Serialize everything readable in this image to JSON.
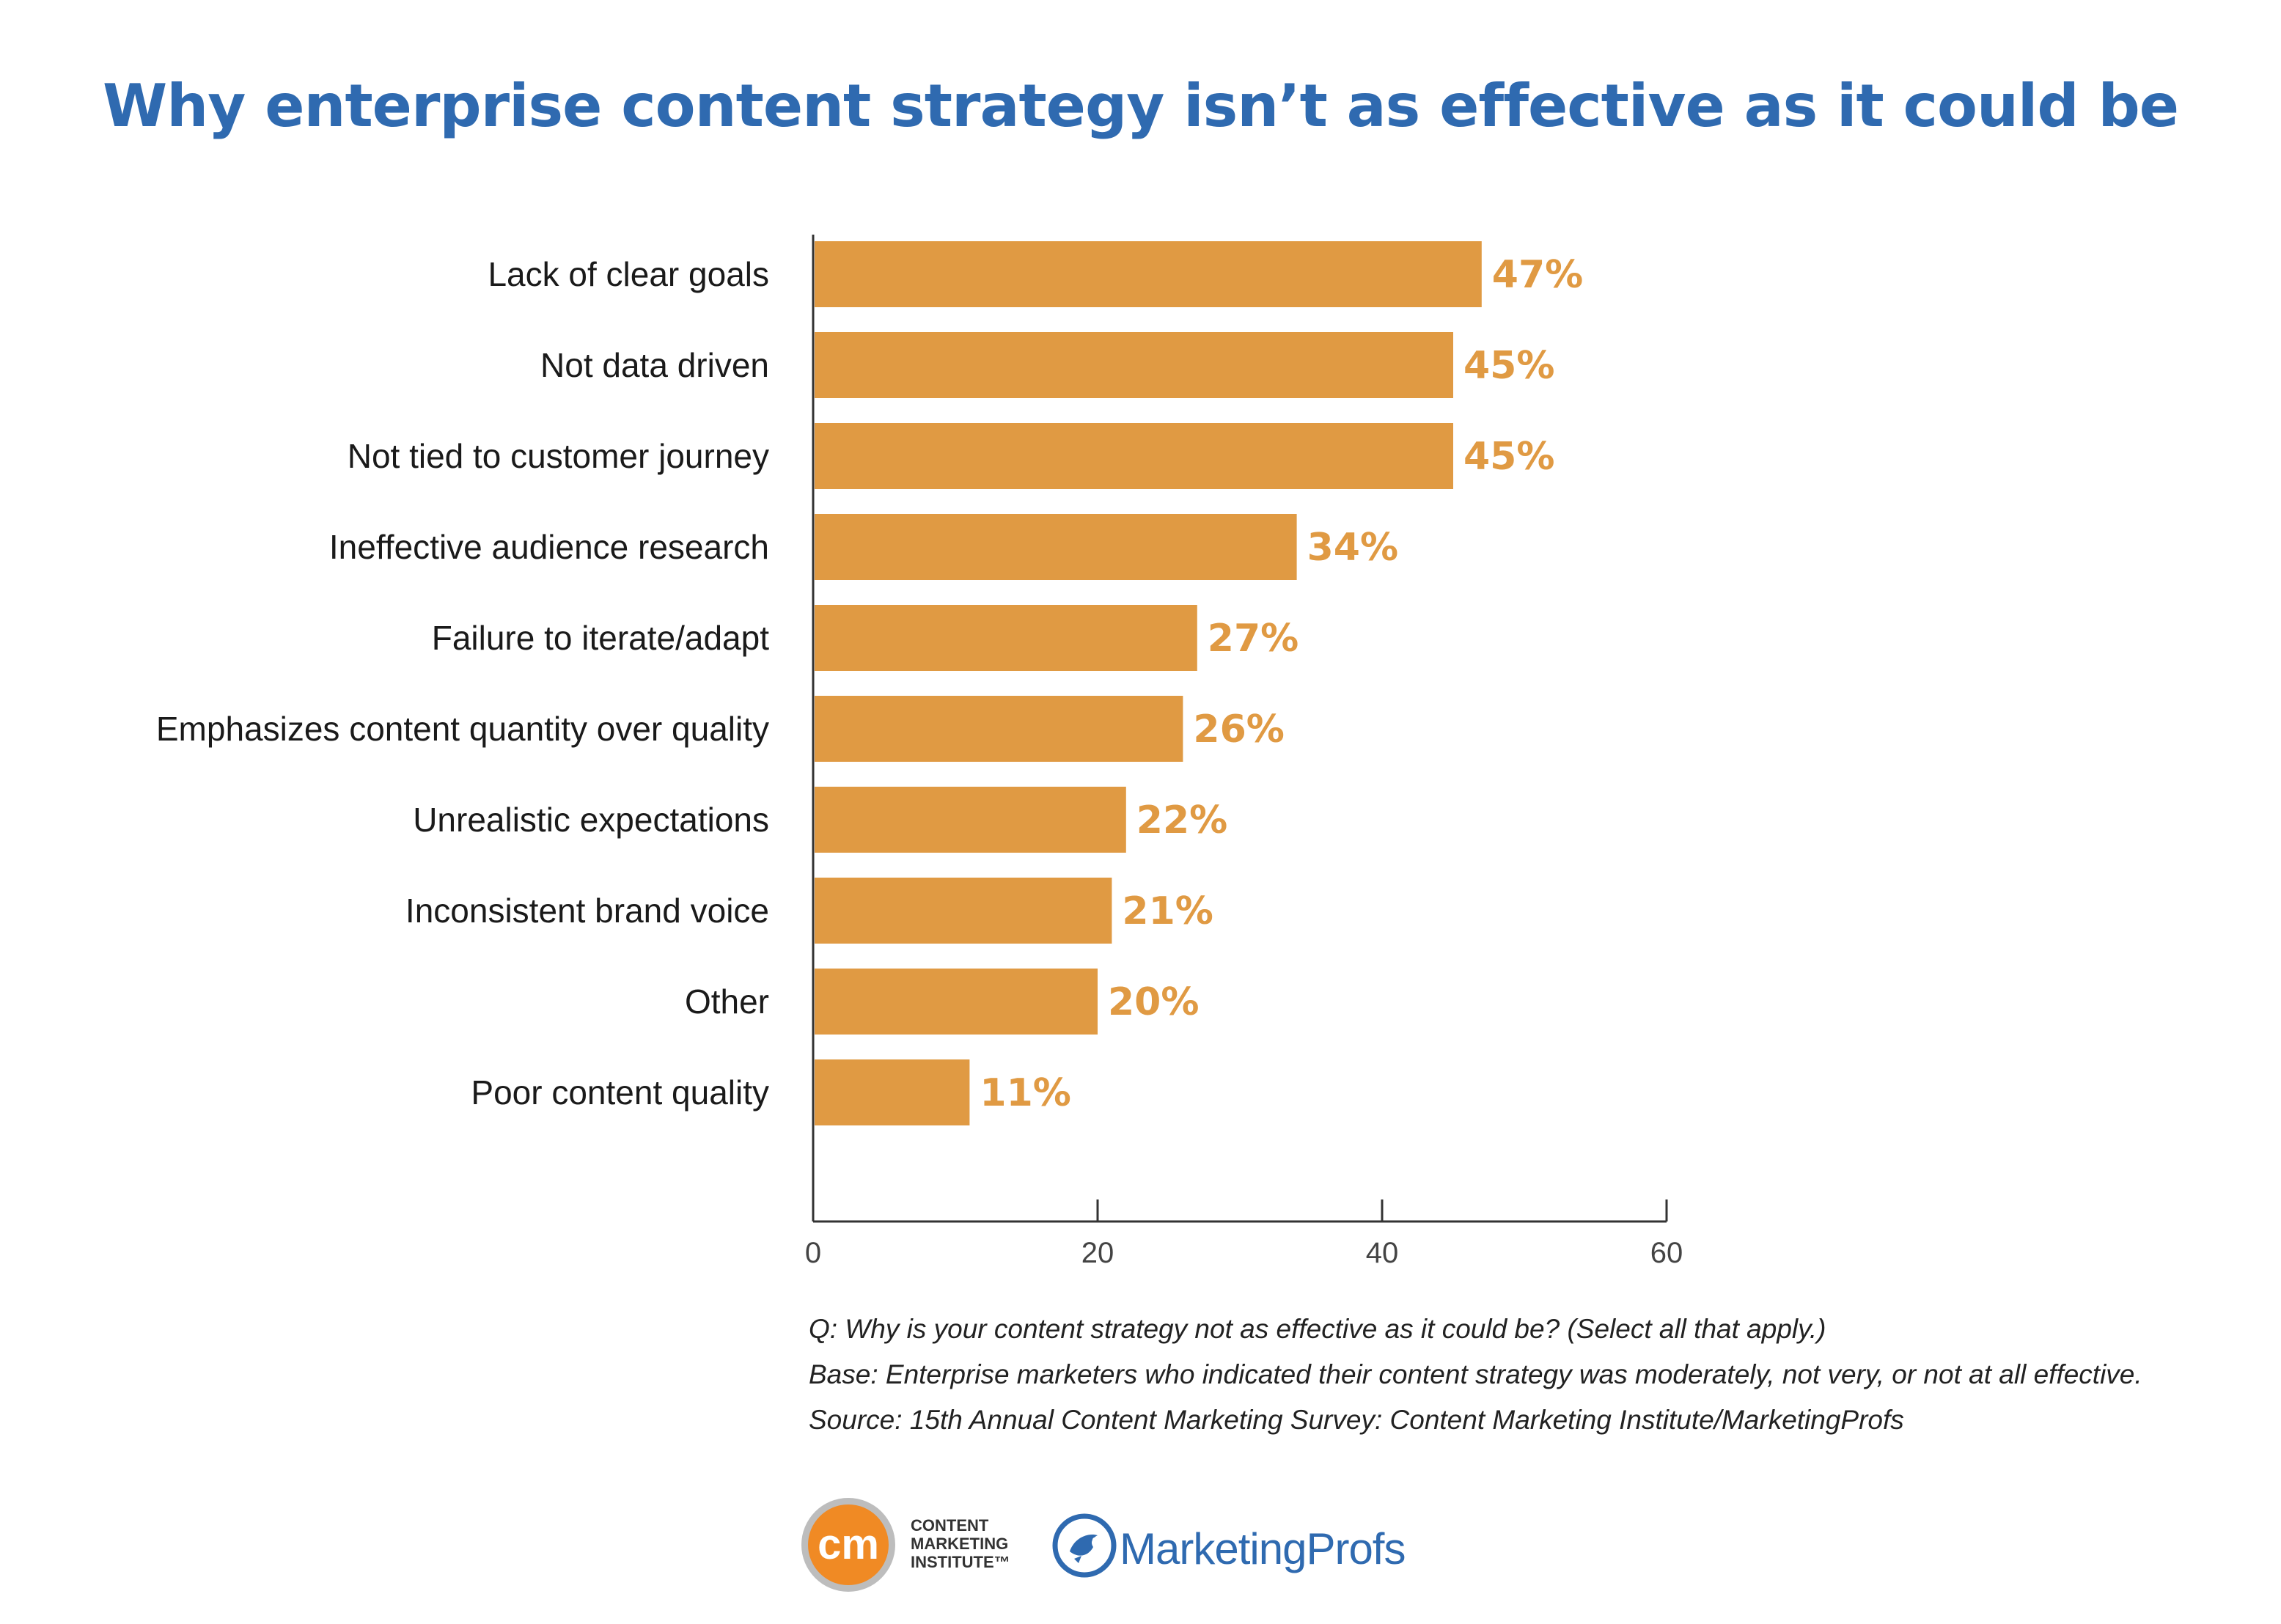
{
  "title": "Why enterprise content strategy isn’t as effective as it could be",
  "chart_data": {
    "type": "bar",
    "orientation": "horizontal",
    "title": "Why enterprise content strategy isn’t as effective as it could be",
    "categories": [
      "Lack of clear goals",
      "Not data driven",
      "Not tied to customer journey",
      "Ineffective audience research",
      "Failure to iterate/adapt",
      "Emphasizes content quantity over quality",
      "Unrealistic expectations",
      "Inconsistent brand voice",
      "Other",
      "Poor content quality"
    ],
    "values": [
      47,
      45,
      45,
      34,
      27,
      26,
      22,
      21,
      20,
      11
    ],
    "value_labels": [
      "47%",
      "45%",
      "45%",
      "34%",
      "27%",
      "26%",
      "22%",
      "21%",
      "20%",
      "11%"
    ],
    "xlim": [
      0,
      60
    ],
    "xticks": [
      0,
      20,
      40,
      60
    ],
    "xlabel": "",
    "ylabel": "",
    "grid": false,
    "bar_color": "#e09a43",
    "label_color": "#e09a43"
  },
  "footnotes": [
    "Q: Why is your content strategy not as effective as it could be? (Select all that apply.)",
    "Base: Enterprise marketers who indicated their content strategy was moderately, not very, or not at all effective.",
    "Source: 15th Annual Content Marketing Survey: Content Marketing Institute/MarketingProfs"
  ],
  "logos": {
    "cmi_badge": "cm",
    "cmi_lines": "CONTENT\nMARKETING\nINSTITUTE™",
    "marketingprofs": "MarketingProfs"
  },
  "colors": {
    "title": "#2f6ab0",
    "bar": "#e09a43",
    "axis": "#333333",
    "cmi_orange": "#f08a24",
    "mp_blue": "#2f6ab0"
  }
}
